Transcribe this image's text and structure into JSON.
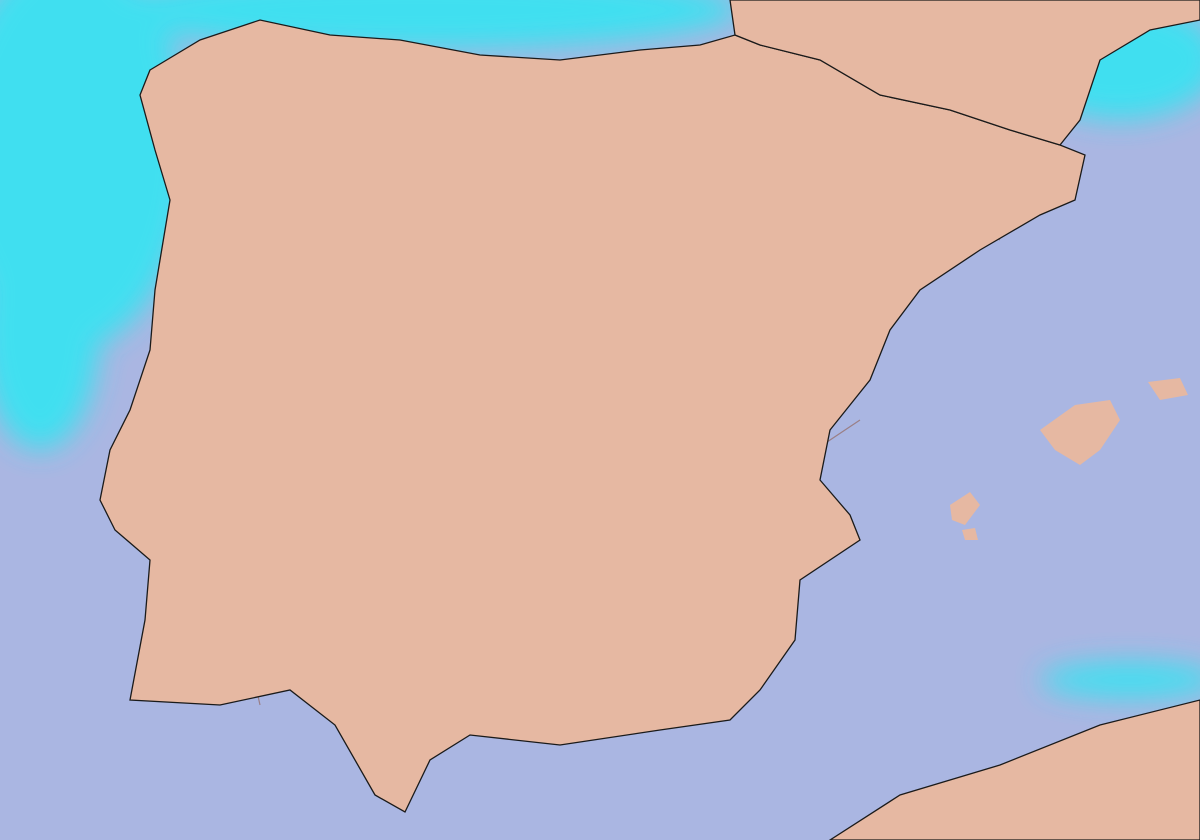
{
  "colors": {
    "sea": "#aab6e2",
    "land": "#e6b8a2",
    "coastline": "#1a1a1a",
    "borders": "#9a7f86",
    "precip_light": "#35e4f2",
    "precip_medium": "#3d86f0",
    "precip_heavy": "#5a3ee8",
    "precip_extreme": "#a040e0"
  }
}
